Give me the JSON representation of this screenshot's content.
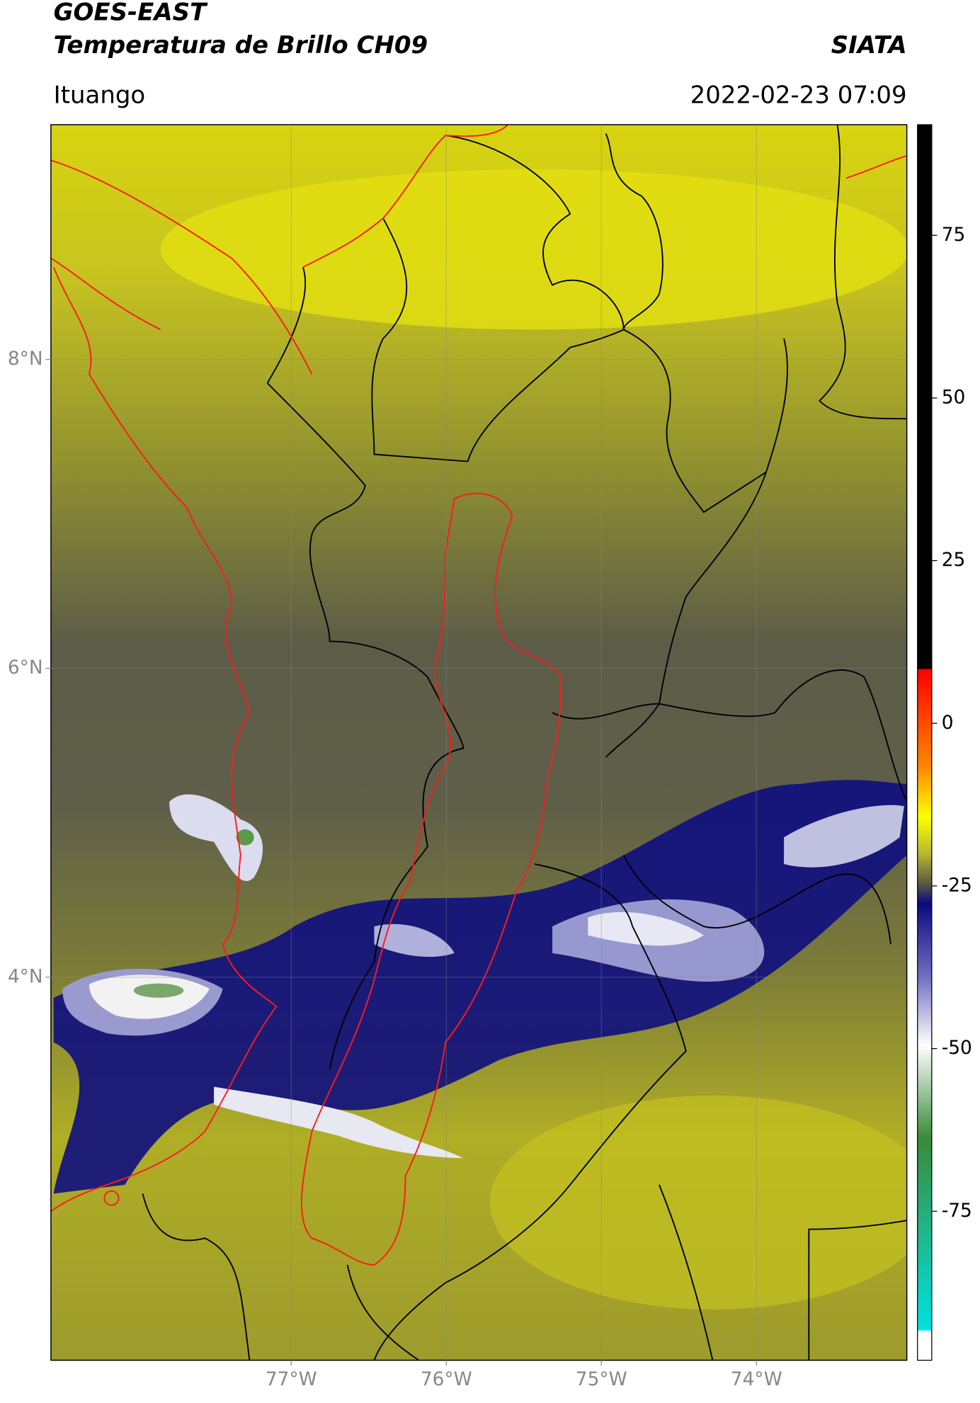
{
  "header": {
    "title": "GOES-EAST",
    "subtitle": "Temperatura de Brillo CH09",
    "source": "SIATA",
    "location": "Ituango",
    "datetime": "2022-02-23 07:09"
  },
  "map": {
    "xlim": [
      -78.55,
      -73.03
    ],
    "ylim": [
      1.52,
      9.52
    ],
    "xticks": [
      {
        "value": -77,
        "label": "77°W"
      },
      {
        "value": -76,
        "label": "76°W"
      },
      {
        "value": -75,
        "label": "75°W"
      },
      {
        "value": -74,
        "label": "74°W"
      }
    ],
    "yticks": [
      {
        "value": 8,
        "label": "8°N"
      },
      {
        "value": 6,
        "label": "6°N"
      },
      {
        "value": 4,
        "label": "4°N"
      }
    ]
  },
  "colorbar": {
    "lim": [
      -97.9,
      92
    ],
    "ticks": [
      75,
      50,
      25,
      0,
      -25,
      -50,
      -75
    ]
  }
}
